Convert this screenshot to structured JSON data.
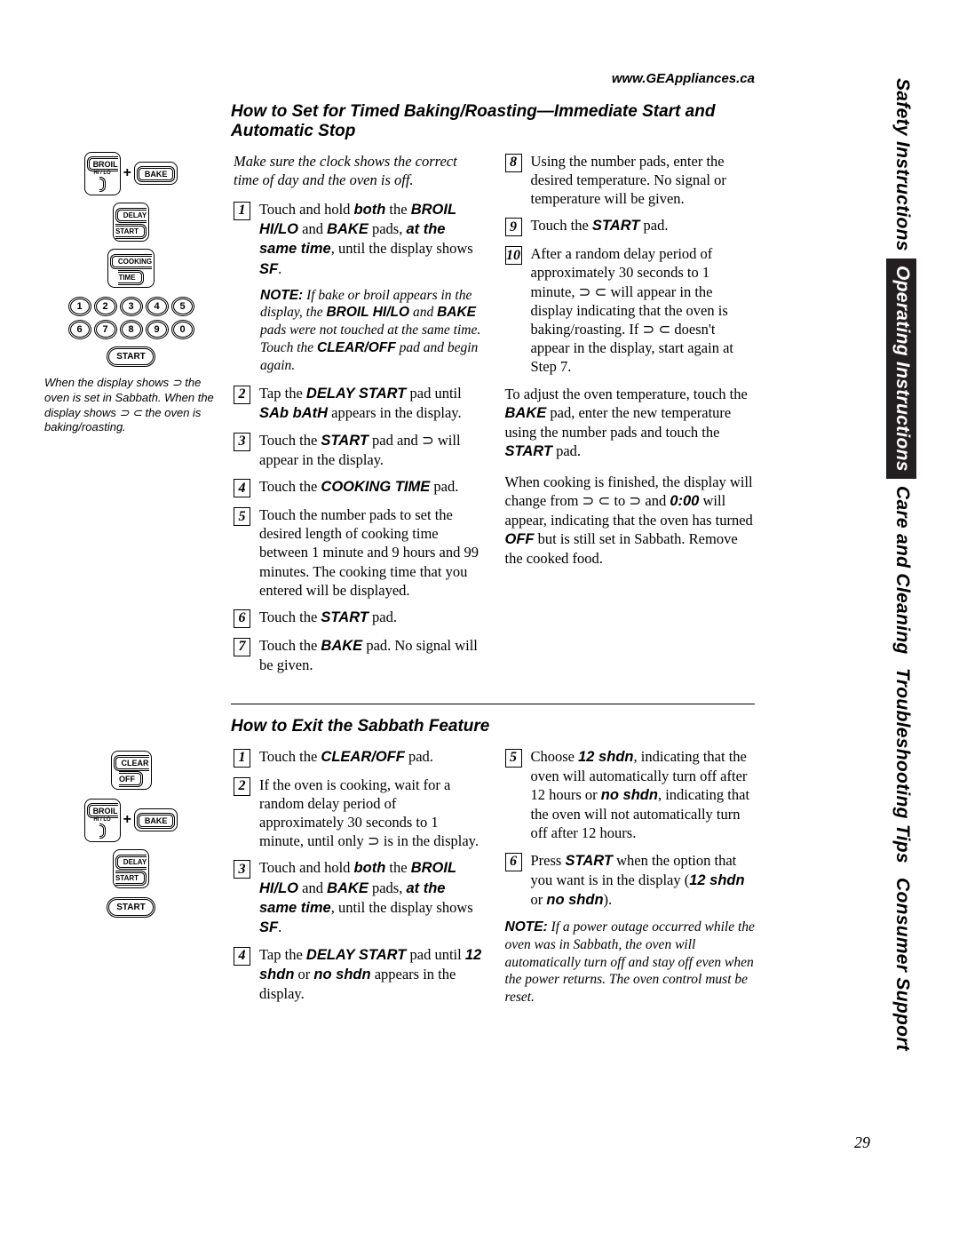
{
  "url": "www.GEAppliances.ca",
  "page_number": "29",
  "side_tabs": [
    {
      "label": "Safety Instructions",
      "active": false
    },
    {
      "label": "Operating Instructions",
      "active": true
    },
    {
      "label": "Care and Cleaning",
      "active": false
    },
    {
      "label": "Troubleshooting Tips",
      "active": false
    },
    {
      "label": "Consumer Support",
      "active": false
    }
  ],
  "panel1": {
    "broil_label": "BROIL",
    "broil_sub": "HI / LO",
    "bake_label": "BAKE",
    "plus": "+",
    "delay_start": "DELAY\nSTART",
    "cooking_time": "COOKING\nTIME",
    "row1": [
      "1",
      "2",
      "3",
      "4",
      "5"
    ],
    "row2": [
      "6",
      "7",
      "8",
      "9",
      "0"
    ],
    "start": "START",
    "caption": "When the display shows ⊃ the oven is set in Sabbath. When the display shows ⊃ ⊂ the oven is baking/roasting."
  },
  "panel2": {
    "clear_off": "CLEAR\nOFF",
    "broil_label": "BROIL",
    "broil_sub": "HI / LO",
    "bake_label": "BAKE",
    "plus": "+",
    "delay_start": "DELAY\nSTART",
    "start": "START"
  },
  "section1": {
    "title": "How to Set for Timed Baking/Roasting—Immediate Start and Automatic Stop",
    "intro": "Make sure the clock shows the correct time of day and the oven is off.",
    "left_steps": [
      {
        "n": "1",
        "html": "Touch and hold <b class='sans-i'>both</b> the <b class='sans-i'>BROIL HI/LO</b> and <b class='sans-i'>BAKE</b> pads, <b class='sans-i'>at the same time</b>, until the display shows <b class='sans-i'>SF</b>."
      },
      {
        "n": "2",
        "html": "Tap the <b class='sans-i'>DELAY START</b> pad until <b class='sans-i'>SAb bAtH</b> appears in the display."
      },
      {
        "n": "3",
        "html": "Touch the <b class='sans-i'>START</b> pad and <span class='supset'>⊃</span> will appear in the display."
      },
      {
        "n": "4",
        "html": "Touch the <b class='sans-i'>COOKING TIME</b> pad."
      },
      {
        "n": "5",
        "html": "Touch the number pads to set the desired length of cooking time between 1 minute and 9 hours and 99 minutes. The cooking time that you entered will be displayed."
      },
      {
        "n": "6",
        "html": "Touch the <b class='sans-i'>START</b> pad."
      },
      {
        "n": "7",
        "html": "Touch the <b class='sans-i'>BAKE</b> pad. No signal will be given."
      }
    ],
    "note1": "<b class='sans-i'>NOTE:</b> If bake or broil appears in the display, the <b class='sans-i'>BROIL HI/LO</b> and <b class='sans-i'>BAKE</b> pads were not touched at the same time. Touch the <b class='sans-i'>CLEAR/OFF</b> pad and begin again.",
    "right_steps": [
      {
        "n": "8",
        "html": "Using the number pads, enter the desired temperature. No signal or temperature will be given."
      },
      {
        "n": "9",
        "html": "Touch the <b class='sans-i'>START</b> pad."
      },
      {
        "n": "10",
        "html": "After a random delay period of approximately 30 seconds to 1 minute, <span class='supset'>⊃ ⊂</span> will appear in the display indicating that the oven is baking/roasting. If <span class='supset'>⊃ ⊂</span> doesn't appear in the display, start again at Step 7."
      }
    ],
    "tail1": "To adjust the oven temperature, touch the <b class='sans-i'>BAKE</b> pad, enter the new temperature using the number pads and touch the <b class='sans-i'>START</b> pad.",
    "tail2": "When cooking is finished, the display will change from <span class='supset'>⊃ ⊂</span> to <span class='supset'>⊃</span> and <b class='sans-i'>0:00</b> will appear, indicating that the oven has turned <b class='sans-i'>OFF</b> but is still set in Sabbath. Remove the cooked food."
  },
  "section2": {
    "title": "How to Exit the Sabbath Feature",
    "left_steps": [
      {
        "n": "1",
        "html": "Touch the <b class='sans-i'>CLEAR/OFF</b> pad."
      },
      {
        "n": "2",
        "html": "If the oven is cooking, wait for a random delay period of approximately 30 seconds to 1 minute, until only <span class='supset'>⊃</span> is in the display."
      },
      {
        "n": "3",
        "html": "Touch and hold <b class='sans-i'>both</b> the <b class='sans-i'>BROIL HI/LO</b> and <b class='sans-i'>BAKE</b> pads, <b class='sans-i'>at the same time</b>, until the display shows <b class='sans-i'>SF</b>."
      },
      {
        "n": "4",
        "html": "Tap the <b class='sans-i'>DELAY START</b> pad until <b class='sans-i'>12 shdn</b> or <b class='sans-i'>no shdn</b> appears in the display."
      }
    ],
    "right_steps": [
      {
        "n": "5",
        "html": "Choose <b class='sans-i'>12 shdn</b>, indicating that the oven will automatically turn off after 12 hours or <b class='sans-i'>no shdn</b>, indicating that the oven will not automatically turn off after 12 hours."
      },
      {
        "n": "6",
        "html": "Press <b class='sans-i'>START</b> when the option that you want is in the display (<b class='sans-i'>12 shdn</b> or <b class='sans-i'>no shdn</b>)."
      }
    ],
    "note2": "<b class='sans-i'>NOTE:</b> If a power outage occurred while the oven was in Sabbath, the oven will automatically turn off and stay off even when the power returns. The oven control must be reset."
  }
}
